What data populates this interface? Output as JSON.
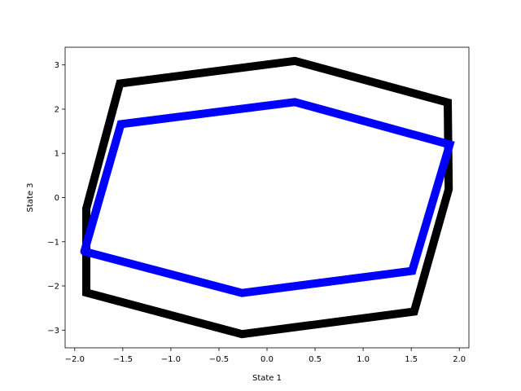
{
  "chart_data": {
    "type": "line",
    "title": "",
    "xlabel": "State 1",
    "ylabel": "State 3",
    "xlim": [
      -2.1,
      2.1
    ],
    "ylim": [
      -3.4,
      3.4
    ],
    "xticks": [
      -2.0,
      -1.5,
      -1.0,
      -0.5,
      0.0,
      0.5,
      1.0,
      1.5,
      2.0
    ],
    "xtick_labels": [
      "−2.0",
      "−1.5",
      "−1.0",
      "−0.5",
      "0.0",
      "0.5",
      "1.0",
      "1.5",
      "2.0"
    ],
    "yticks": [
      -3,
      -2,
      -1,
      0,
      1,
      2,
      3
    ],
    "ytick_labels": [
      "−3",
      "−2",
      "−1",
      "0",
      "1",
      "2",
      "3"
    ],
    "grid": false,
    "series": [
      {
        "color": "#000000",
        "x": [
          -1.88,
          -1.53,
          0.29,
          1.88,
          1.89,
          1.53,
          -0.26,
          -1.88,
          -1.88
        ],
        "y": [
          -0.25,
          2.58,
          3.09,
          2.15,
          0.19,
          -2.58,
          -3.09,
          -2.15,
          -0.25
        ]
      },
      {
        "color": "#0000ff",
        "x": [
          -1.9,
          -1.52,
          0.29,
          1.9,
          1.51,
          -0.26,
          -1.9
        ],
        "y": [
          -1.22,
          1.66,
          2.16,
          1.2,
          -1.66,
          -2.16,
          -1.22
        ]
      }
    ]
  }
}
